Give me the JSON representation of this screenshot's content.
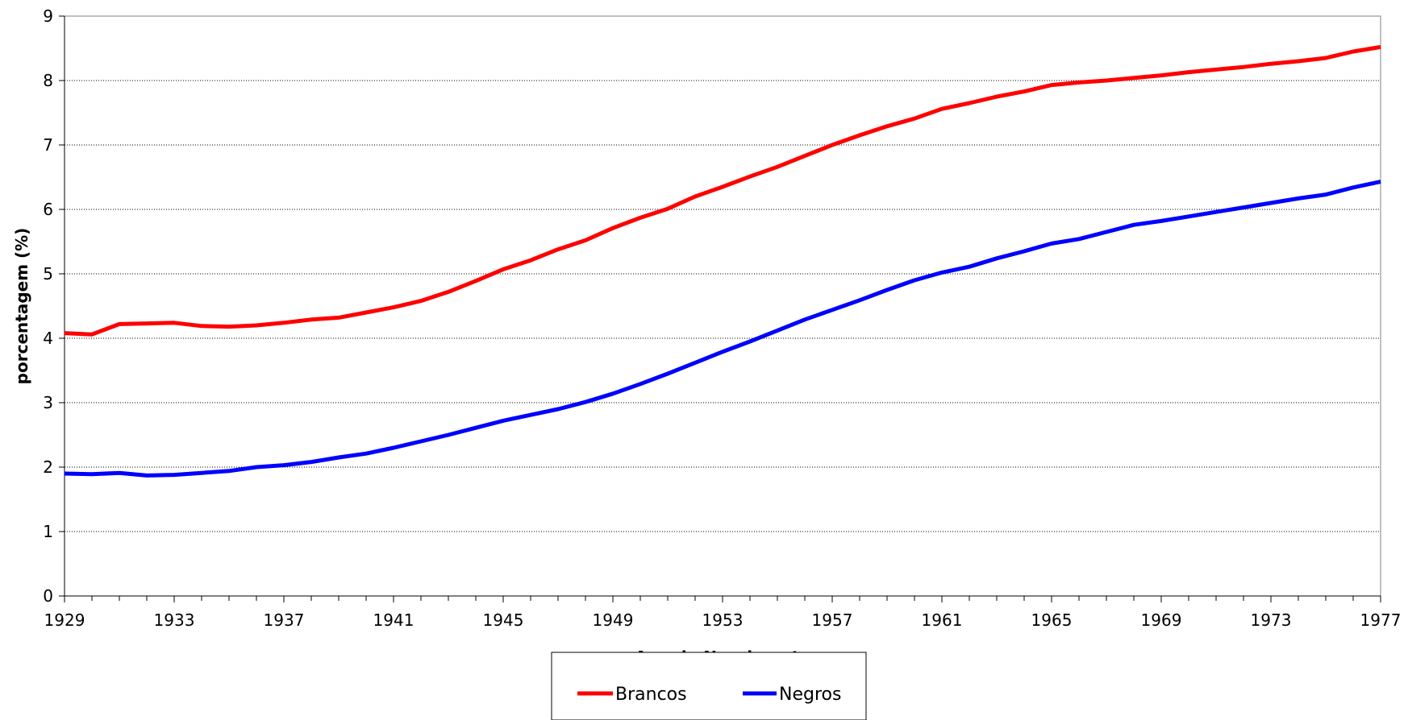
{
  "chart_data": {
    "type": "line",
    "title": "",
    "xlabel": "Ano de Nascimento",
    "ylabel": "porcentagem (%)",
    "xlim": [
      1929,
      1977
    ],
    "ylim": [
      0,
      9
    ],
    "xticks": [
      "1929",
      "1933",
      "1937",
      "1941",
      "1945",
      "1949",
      "1953",
      "1957",
      "1961",
      "1965",
      "1969",
      "1973",
      "1977"
    ],
    "yticks": [
      "0",
      "1",
      "2",
      "3",
      "4",
      "5",
      "6",
      "7",
      "8",
      "9"
    ],
    "grid": "horizontal",
    "legend_position": "bottom-center",
    "x": [
      1929,
      1930,
      1931,
      1932,
      1933,
      1934,
      1935,
      1936,
      1937,
      1938,
      1939,
      1940,
      1941,
      1942,
      1943,
      1944,
      1945,
      1946,
      1947,
      1948,
      1949,
      1950,
      1951,
      1952,
      1953,
      1954,
      1955,
      1956,
      1957,
      1958,
      1959,
      1960,
      1961,
      1962,
      1963,
      1964,
      1965,
      1966,
      1967,
      1968,
      1969,
      1970,
      1971,
      1972,
      1973,
      1974,
      1975,
      1976,
      1977
    ],
    "series": [
      {
        "name": "Brancos",
        "color": "#ff0000",
        "values": [
          4.08,
          4.06,
          4.22,
          4.23,
          4.24,
          4.19,
          4.18,
          4.2,
          4.24,
          4.29,
          4.32,
          4.4,
          4.48,
          4.58,
          4.72,
          4.89,
          5.07,
          5.21,
          5.38,
          5.52,
          5.71,
          5.87,
          6.01,
          6.2,
          6.35,
          6.51,
          6.66,
          6.83,
          7.0,
          7.15,
          7.29,
          7.41,
          7.56,
          7.65,
          7.75,
          7.83,
          7.93,
          7.97,
          8.0,
          8.04,
          8.08,
          8.13,
          8.17,
          8.21,
          8.26,
          8.3,
          8.35,
          8.45,
          8.52
        ]
      },
      {
        "name": "Negros",
        "color": "#0000ff",
        "values": [
          1.9,
          1.89,
          1.91,
          1.87,
          1.88,
          1.91,
          1.94,
          2.0,
          2.03,
          2.08,
          2.15,
          2.21,
          2.3,
          2.4,
          2.5,
          2.61,
          2.72,
          2.81,
          2.9,
          3.01,
          3.14,
          3.29,
          3.45,
          3.62,
          3.79,
          3.95,
          4.12,
          4.29,
          4.44,
          4.59,
          4.75,
          4.9,
          5.02,
          5.11,
          5.24,
          5.35,
          5.47,
          5.54,
          5.65,
          5.76,
          5.82,
          5.89,
          5.96,
          6.03,
          6.1,
          6.17,
          6.23,
          6.34,
          6.43
        ]
      }
    ]
  }
}
